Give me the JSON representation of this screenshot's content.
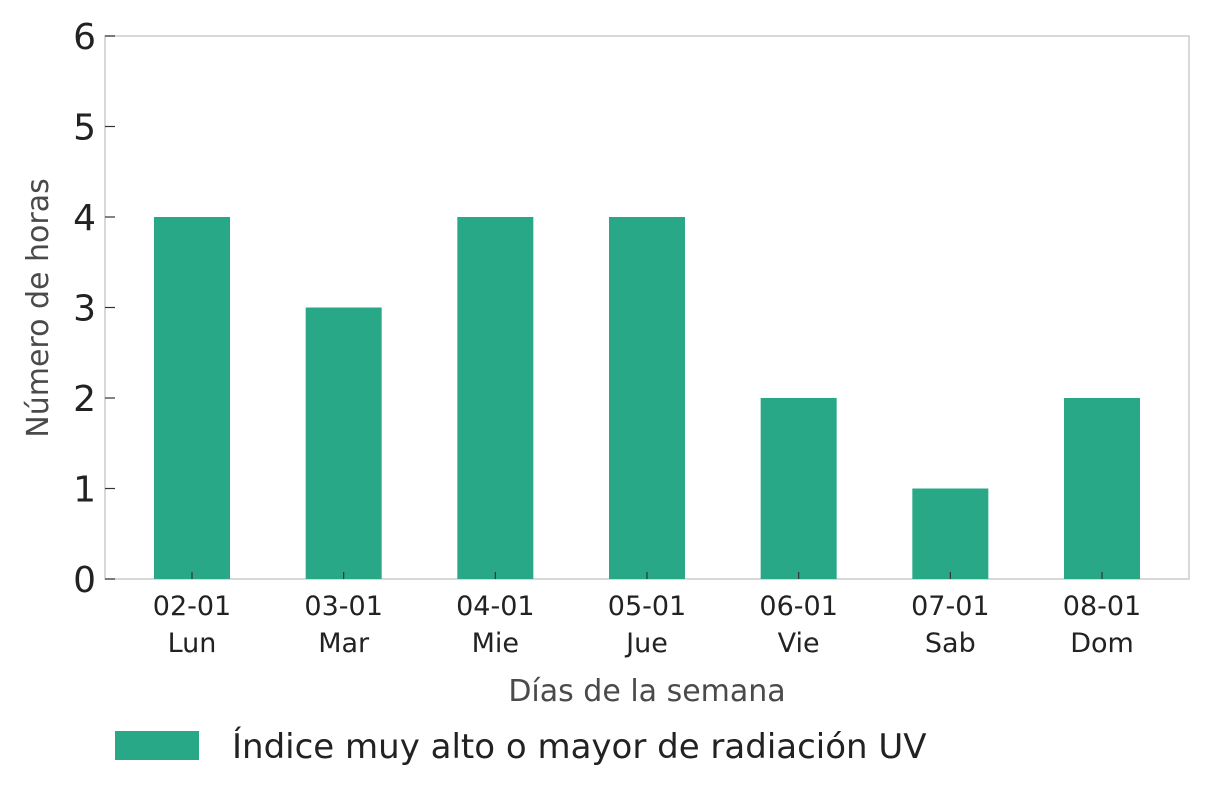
{
  "chart_data": {
    "type": "bar",
    "categories": [
      [
        "02-01",
        "Lun"
      ],
      [
        "03-01",
        "Mar"
      ],
      [
        "04-01",
        "Mie"
      ],
      [
        "05-01",
        "Jue"
      ],
      [
        "06-01",
        "Vie"
      ],
      [
        "07-01",
        "Sab"
      ],
      [
        "08-01",
        "Dom"
      ]
    ],
    "series": [
      {
        "name": "Índice muy alto o mayor de radiación UV",
        "values": [
          4,
          3,
          4,
          4,
          2,
          1,
          2
        ],
        "color": "#28a886"
      }
    ],
    "xlabel": "Días de la semana",
    "ylabel": "Número de horas",
    "ylim": [
      0,
      6
    ],
    "yticks": [
      0,
      1,
      2,
      3,
      4,
      5,
      6
    ],
    "grid": false,
    "legend_position": "bottom"
  }
}
